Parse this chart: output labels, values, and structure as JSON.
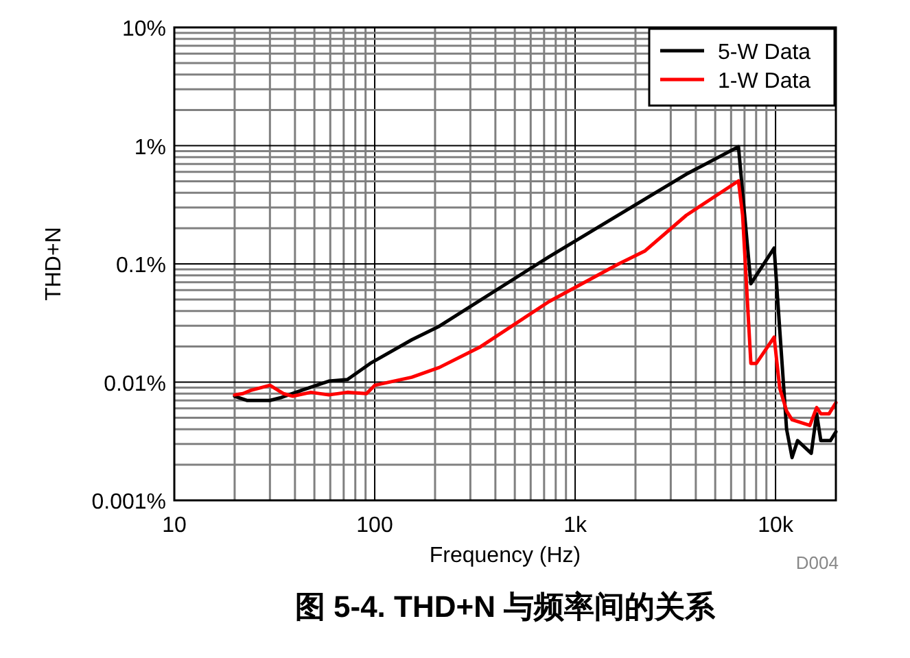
{
  "chart_data": {
    "type": "line",
    "title": "图 5-4. THD+N 与频率间的关系",
    "xlabel": "Frequency (Hz)",
    "ylabel": "THD+N",
    "log": "xy",
    "grid": true,
    "legend": "top right",
    "line_style": "solid",
    "marker": "none",
    "xlim": [
      10,
      20000
    ],
    "xticks": [
      10,
      100,
      {
        "value": 1000,
        "label": "1k"
      },
      {
        "value": 10000,
        "label": "10k"
      }
    ],
    "ylim": [
      0.001,
      10
    ],
    "yticks": [
      {
        "value": 10,
        "label": "10%"
      },
      {
        "value": 1,
        "label": "1%"
      },
      {
        "value": 0.1,
        "label": "0.1%"
      },
      {
        "value": 0.01,
        "label": "0.01%"
      },
      {
        "value": 0.001,
        "label": "0.001%"
      }
    ],
    "annotations": [
      "D004"
    ],
    "series": [
      {
        "name": "5-W Data",
        "color": "#000000",
        "x": [
          20,
          23,
          30,
          34,
          43,
          59,
          73,
          95,
          153,
          210,
          741,
          3590,
          6530,
          7530,
          9840,
          11350,
          12090,
          12880,
          15070,
          16040,
          16820,
          18790,
          20000
        ],
        "values": [
          0.0076,
          0.007,
          0.007,
          0.0074,
          0.0085,
          0.0102,
          0.0105,
          0.0144,
          0.0228,
          0.0297,
          0.115,
          0.574,
          0.98,
          0.068,
          0.136,
          0.004,
          0.0023,
          0.0032,
          0.0025,
          0.0054,
          0.0032,
          0.0032,
          0.0038
        ]
      },
      {
        "name": "1-W Data",
        "color": "#ff0000",
        "x": [
          20,
          22,
          24,
          30,
          35,
          39,
          48,
          59,
          73,
          91,
          100,
          153,
          210,
          337,
          741,
          1630,
          2235,
          3590,
          6530,
          6850,
          7530,
          8020,
          9840,
          10490,
          11350,
          12090,
          14830,
          16040,
          16820,
          18490,
          20000
        ],
        "values": [
          0.0078,
          0.008,
          0.0085,
          0.0094,
          0.008,
          0.0076,
          0.0082,
          0.0078,
          0.0082,
          0.008,
          0.0094,
          0.011,
          0.0133,
          0.0199,
          0.048,
          0.099,
          0.129,
          0.258,
          0.503,
          0.258,
          0.0144,
          0.0144,
          0.024,
          0.0089,
          0.0057,
          0.0048,
          0.0043,
          0.0061,
          0.0054,
          0.0054,
          0.0067
        ]
      }
    ]
  }
}
